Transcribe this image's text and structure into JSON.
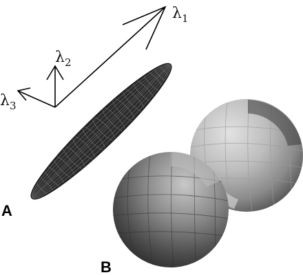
{
  "figure": {
    "axes": [
      {
        "symbol": "λ",
        "index": "1"
      },
      {
        "symbol": "λ",
        "index": "2"
      },
      {
        "symbol": "λ",
        "index": "3"
      }
    ],
    "panels": [
      {
        "label": "A"
      },
      {
        "label": "B"
      }
    ],
    "colors": {
      "ellipsoid_fill": "#2b2b2b",
      "ellipsoid_mesh": "#6a6a6a",
      "lobe_light": "#d8d8d8",
      "lobe_dark": "#3c3c3c",
      "arrow": "#000000"
    }
  }
}
